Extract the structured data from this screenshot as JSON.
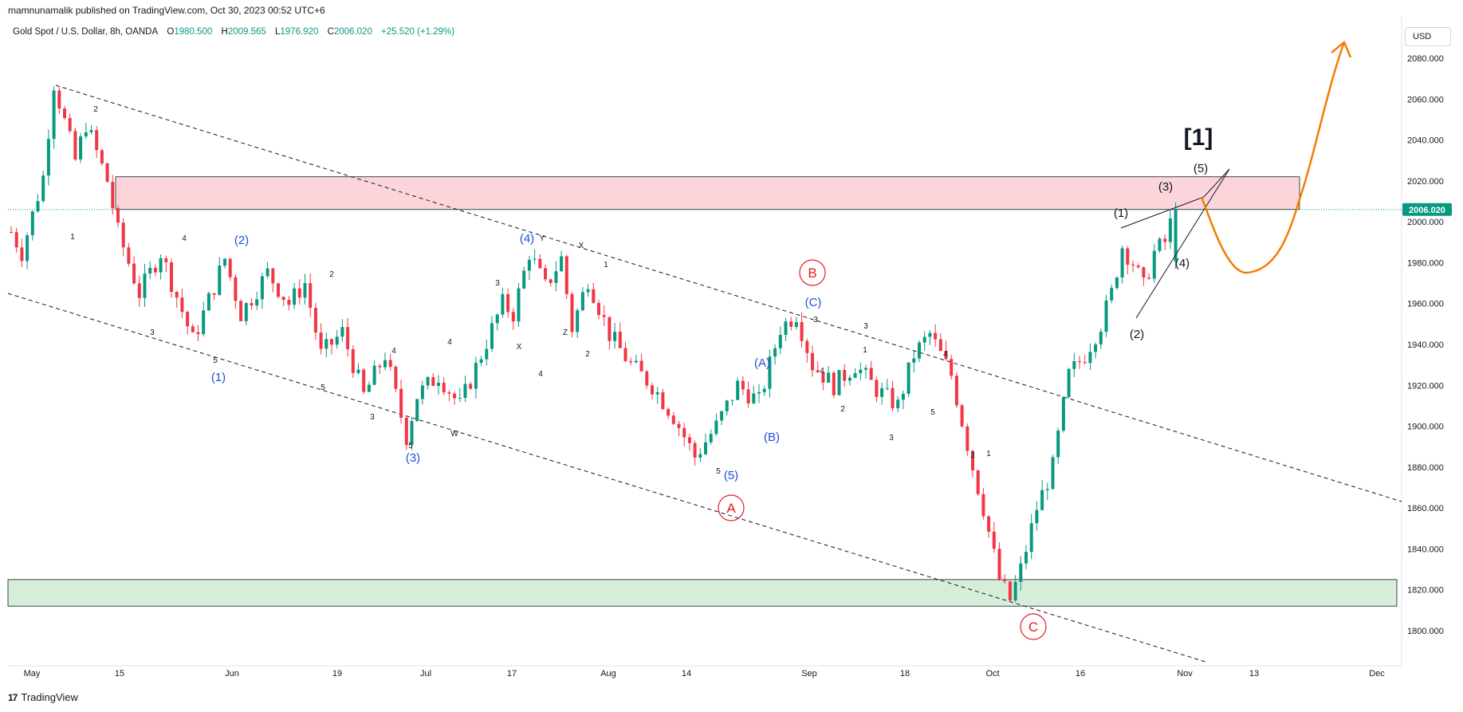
{
  "header": {
    "credit": "mamnunamalik published on TradingView.com, Oct 30, 2023 00:52 UTC+6",
    "symbol": "Gold Spot / U.S. Dollar, 8h, OANDA",
    "open_label": "O",
    "open": "1980.500",
    "high_label": "H",
    "high": "2009.565",
    "low_label": "L",
    "low": "1976.920",
    "close_label": "C",
    "close": "2006.020",
    "change": "+25.520 (+1.29%)"
  },
  "currency_button": "USD",
  "footer": {
    "brand": "TradingView",
    "mark": "17"
  },
  "colors": {
    "up": "#089981",
    "down": "#f23645",
    "blue_label": "#1e4fd8",
    "red_label": "#e51c23",
    "projection": "#f57c00",
    "resistance_zone": "#fcd5da",
    "support_zone": "#d6eed9",
    "price_tag": "#089981"
  },
  "chart_data": {
    "type": "candlestick",
    "y_ticks": [
      "2080.000",
      "2060.000",
      "2040.000",
      "2020.000",
      "2000.000",
      "1980.000",
      "1960.000",
      "1940.000",
      "1920.000",
      "1900.000",
      "1880.000",
      "1860.000",
      "1840.000",
      "1820.000",
      "1800.000"
    ],
    "y_range": [
      1790,
      2090
    ],
    "x_ticks": [
      "May",
      "15",
      "Jun",
      "19",
      "Jul",
      "17",
      "Aug",
      "14",
      "Sep",
      "18",
      "Oct",
      "16",
      "Nov",
      "13",
      "Dec"
    ],
    "last_price": "2006.020",
    "key_prices": {
      "ohlc_path": [
        [
          0,
          1995
        ],
        [
          2,
          1985
        ],
        [
          6,
          2022
        ],
        [
          8,
          2068
        ],
        [
          12,
          2030
        ],
        [
          14,
          2048
        ],
        [
          18,
          2020
        ],
        [
          20,
          1995
        ],
        [
          24,
          1965
        ],
        [
          28,
          1985
        ],
        [
          34,
          1942
        ],
        [
          36,
          1955
        ],
        [
          40,
          1982
        ],
        [
          43,
          1955
        ],
        [
          48,
          1975
        ],
        [
          52,
          1960
        ],
        [
          55,
          1970
        ],
        [
          58,
          1935
        ],
        [
          62,
          1946
        ],
        [
          66,
          1915
        ],
        [
          70,
          1935
        ],
        [
          74,
          1895
        ],
        [
          76,
          1915
        ],
        [
          80,
          1925
        ],
        [
          84,
          1910
        ],
        [
          88,
          1935
        ],
        [
          92,
          1960
        ],
        [
          94,
          1955
        ],
        [
          97,
          1985
        ],
        [
          100,
          1968
        ],
        [
          103,
          1982
        ],
        [
          105,
          1948
        ],
        [
          108,
          1972
        ],
        [
          112,
          1945
        ],
        [
          116,
          1930
        ],
        [
          120,
          1920
        ],
        [
          124,
          1905
        ],
        [
          128,
          1885
        ],
        [
          132,
          1900
        ],
        [
          136,
          1920
        ],
        [
          140,
          1912
        ],
        [
          144,
          1948
        ],
        [
          147,
          1955
        ],
        [
          150,
          1930
        ],
        [
          154,
          1920
        ],
        [
          158,
          1930
        ],
        [
          162,
          1918
        ],
        [
          166,
          1910
        ],
        [
          169,
          1935
        ],
        [
          172,
          1945
        ],
        [
          176,
          1925
        ],
        [
          180,
          1880
        ],
        [
          182,
          1860
        ],
        [
          185,
          1825
        ],
        [
          187,
          1815
        ],
        [
          189,
          1830
        ],
        [
          192,
          1860
        ],
        [
          195,
          1880
        ],
        [
          198,
          1925
        ],
        [
          201,
          1935
        ],
        [
          204,
          1950
        ],
        [
          206,
          1965
        ],
        [
          208,
          1988
        ],
        [
          210,
          1980
        ],
        [
          212,
          1968
        ],
        [
          214,
          1985
        ],
        [
          216,
          1990
        ],
        [
          218,
          2008
        ]
      ],
      "resistance_zone": [
        2006,
        2022
      ],
      "support_zone": [
        1812,
        1825
      ]
    },
    "wave_labels_black": [
      "2",
      "1",
      "4",
      "3",
      "5",
      "2",
      "4",
      "3",
      "5",
      "4",
      "3",
      "W",
      "X",
      "Y",
      "X",
      "Z",
      "2",
      "1",
      "3",
      "4",
      "2",
      "1",
      "3",
      "4",
      "5",
      "2",
      "1",
      "3",
      "4",
      "5",
      "5"
    ],
    "wave_labels_blue": [
      "(1)",
      "(2)",
      "(3)",
      "(4)",
      "(5)",
      "(A)",
      "(B)",
      "(C)"
    ],
    "wave_labels_red": [
      "A",
      "B",
      "C"
    ],
    "wave_labels_dark": [
      "(1)",
      "(2)",
      "(3)",
      "(4)",
      "(5)"
    ],
    "big_label": "[1]"
  }
}
